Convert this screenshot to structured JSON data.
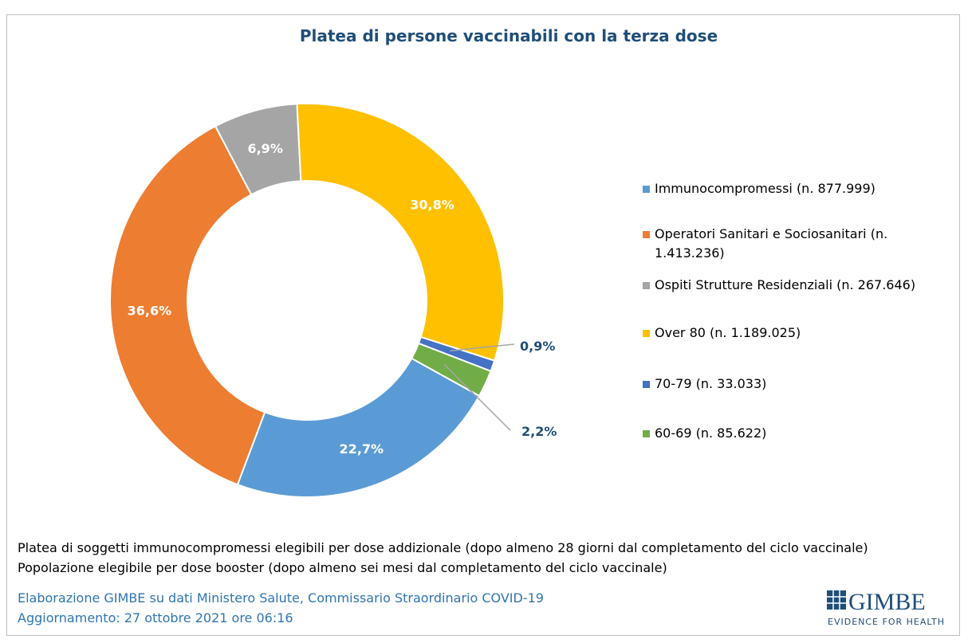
{
  "chart_data": {
    "type": "donut",
    "title": "Platea di persone vaccinabili con la terza dose",
    "categories": [
      "Immunocompromessi (n. 877.999)",
      "Operatori Sanitari e Sociosanitari (n. 1.413.236)",
      "Ospiti Strutture Residenziali (n. 267.646)",
      "Over 80 (n. 1.189.025)",
      "70-79 (n. 33.033)",
      "60-69 (n. 85.622)"
    ],
    "values": [
      22.7,
      36.6,
      6.9,
      30.8,
      0.9,
      2.2
    ],
    "value_labels": [
      "22,7%",
      "36,6%",
      "6,9%",
      "30,8%",
      "0,9%",
      "2,2%"
    ],
    "colors": [
      "#5b9bd5",
      "#ed7d31",
      "#a5a5a5",
      "#ffc000",
      "#4472c4",
      "#70ad47"
    ],
    "legend": "right"
  },
  "notes": [
    "Platea di soggetti immunocompromessi elegibili per dose addizionale (dopo almeno 28 giorni dal completamento del ciclo vaccinale)",
    "Popolazione elegibile per dose booster (dopo almeno sei mesi dal completamento del ciclo vaccinale)"
  ],
  "source": [
    "Elaborazione GIMBE su dati Ministero Salute, Commissario Straordinario COVID-19",
    "Aggiornamento: 27 ottobre 2021 ore 06:16"
  ],
  "logo": {
    "name": "GIMBE",
    "tagline": "EVIDENCE FOR HEALTH"
  }
}
